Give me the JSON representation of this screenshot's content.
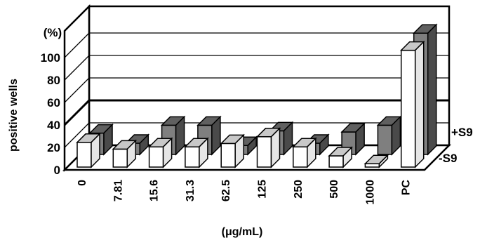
{
  "chart_data": {
    "type": "bar",
    "style": "3d-clustered-depth",
    "ylabel": "positive wells",
    "yunit": "(%)",
    "xlabel": "(μg/mL)",
    "yticks": [
      "0",
      "20",
      "40",
      "60",
      "80",
      "100"
    ],
    "ylim": [
      0,
      100
    ],
    "categories": [
      "0",
      "7.81",
      "15.6",
      "31.3",
      "62.5",
      "125",
      "250",
      "500",
      "1000",
      "PC"
    ],
    "series": [
      {
        "name": "-S9",
        "values": [
          22,
          16,
          18,
          18,
          21,
          27,
          18,
          10,
          3,
          104
        ]
      },
      {
        "name": "+S9",
        "values": [
          19,
          10,
          26,
          26,
          8,
          21,
          10,
          20,
          26,
          108
        ]
      }
    ],
    "colors": {
      "-S9": "#ffffff",
      "+S9": "#808080",
      "frame": "#000000",
      "grid": "#000000"
    },
    "legend": "right, depth labels",
    "grid": true
  }
}
